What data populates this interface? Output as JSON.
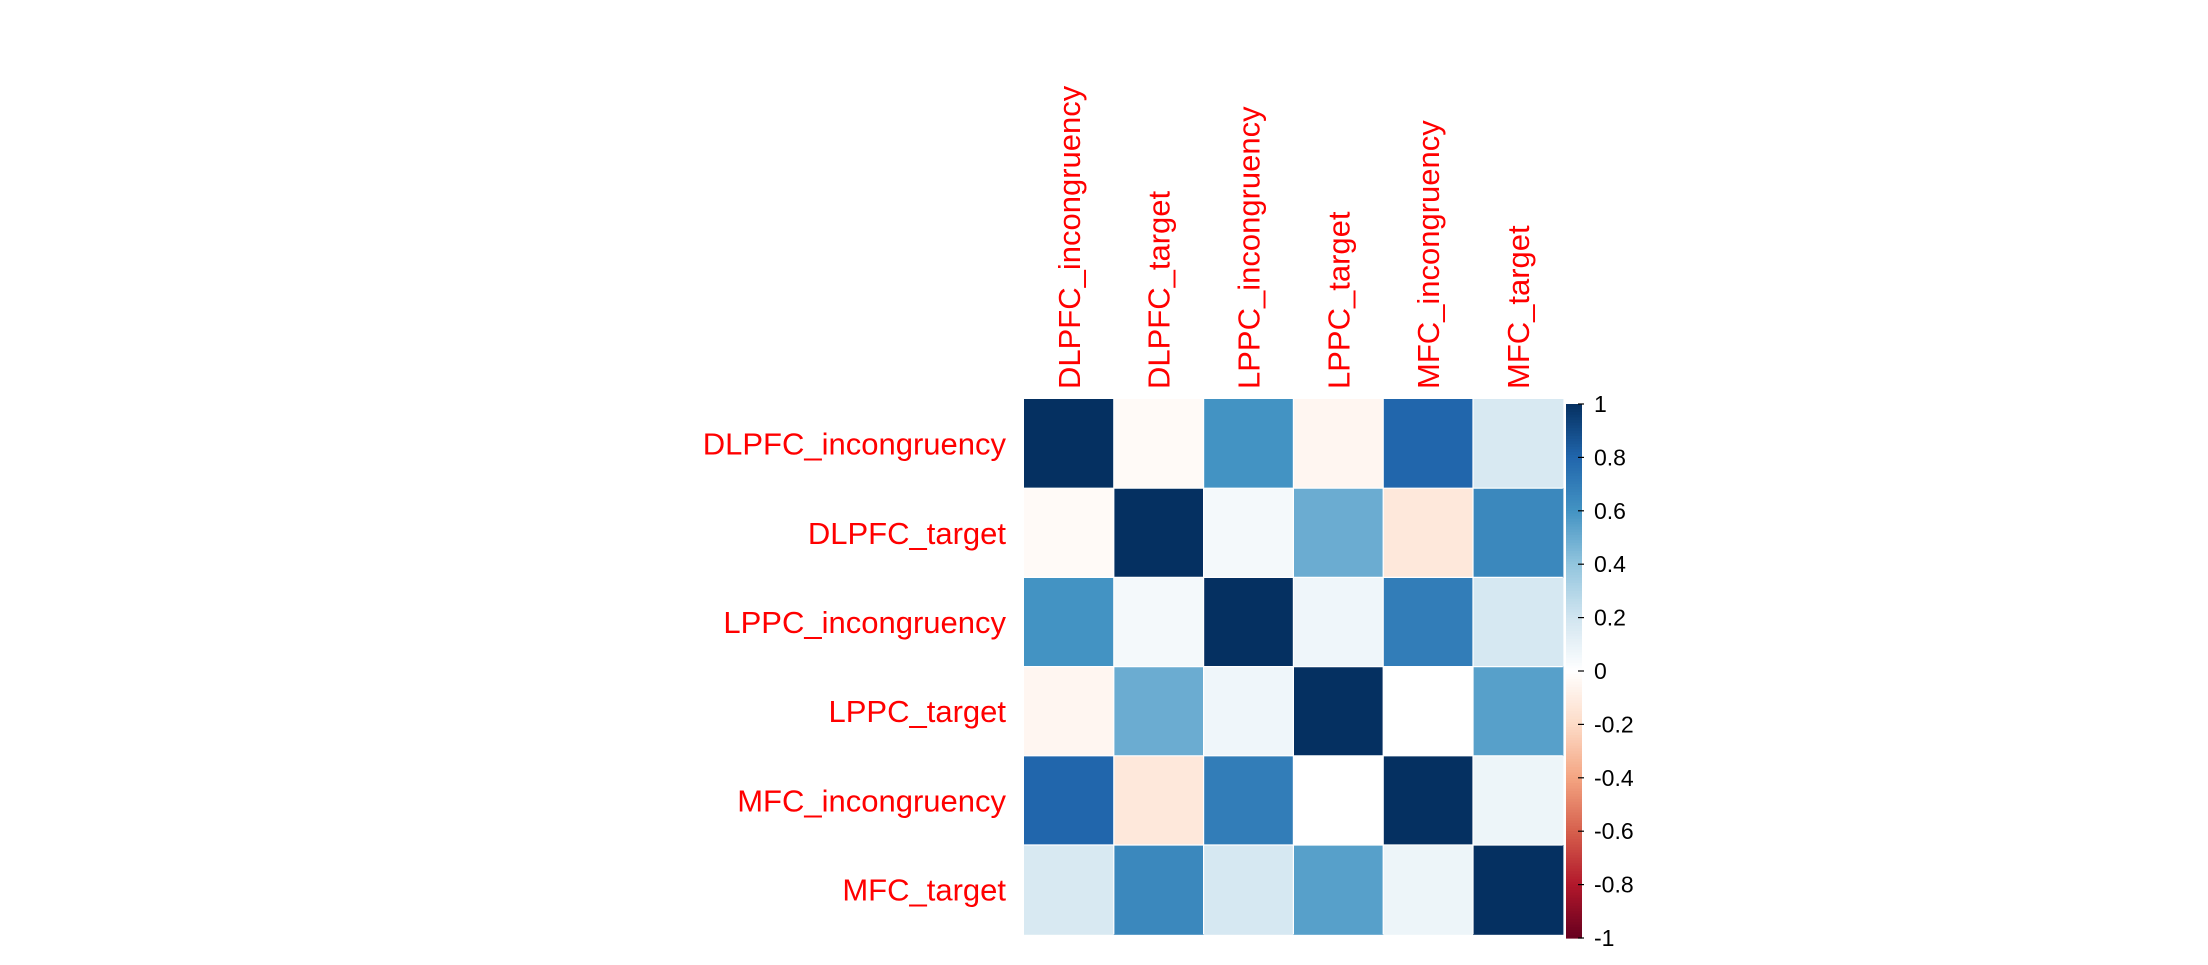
{
  "chart_data": {
    "type": "heatmap",
    "variables": [
      "DLPFC_incongruency",
      "DLPFC_target",
      "LPPC_incongruency",
      "LPPC_target",
      "MFC_incongruency",
      "MFC_target"
    ],
    "matrix": [
      [
        1.0,
        -0.03,
        0.6,
        -0.05,
        0.8,
        0.17
      ],
      [
        -0.03,
        1.0,
        0.05,
        0.5,
        -0.13,
        0.65
      ],
      [
        0.6,
        0.05,
        1.0,
        0.07,
        0.7,
        0.18
      ],
      [
        -0.05,
        0.5,
        0.07,
        1.0,
        0.0,
        0.55
      ],
      [
        0.8,
        -0.13,
        0.7,
        0.0,
        1.0,
        0.08
      ],
      [
        0.17,
        0.65,
        0.18,
        0.55,
        0.08,
        1.0
      ]
    ],
    "colorbar": {
      "range": [
        -1,
        1
      ],
      "ticks": [
        "1",
        "0.8",
        "0.6",
        "0.4",
        "0.2",
        "0",
        "-0.2",
        "-0.4",
        "-0.6",
        "-0.8",
        "-1"
      ],
      "tick_values": [
        1,
        0.8,
        0.6,
        0.4,
        0.2,
        0,
        -0.2,
        -0.4,
        -0.6,
        -0.8,
        -1
      ],
      "palette": [
        "#67001F",
        "#B2182B",
        "#D6604D",
        "#F4A582",
        "#FDDBC7",
        "#FFFFFF",
        "#D1E5F0",
        "#92C5DE",
        "#4393C3",
        "#2166AC",
        "#053061"
      ]
    },
    "label_color": "#ff0000",
    "legend_position": "right"
  }
}
